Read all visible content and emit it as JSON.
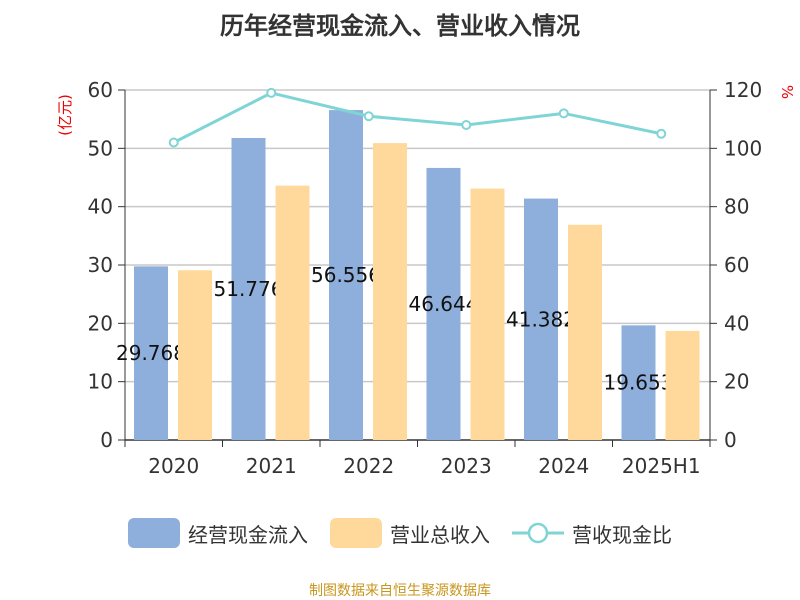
{
  "chart_data": {
    "type": "bar",
    "title": "历年经营现金流入、营业收入情况",
    "categories": [
      "2020",
      "2021",
      "2022",
      "2023",
      "2024",
      "2025H1"
    ],
    "y_left": {
      "label": "(亿元)",
      "range": [
        0,
        60
      ],
      "ticks": [
        0,
        10,
        20,
        30,
        40,
        50,
        60
      ]
    },
    "y_right": {
      "label": "%",
      "range": [
        0,
        120
      ],
      "ticks": [
        0,
        20,
        40,
        60,
        80,
        100,
        120
      ]
    },
    "grid": true,
    "legend_position": "bottom",
    "series": [
      {
        "name": "经营现金流入",
        "type": "bar",
        "axis": "left",
        "color": "#8eaedb",
        "values": [
          29.768,
          51.776,
          56.556,
          46.644,
          41.382,
          19.653
        ],
        "labels": [
          "29.768",
          "51.776",
          "56.556",
          "46.644",
          "41.382",
          "19.653"
        ]
      },
      {
        "name": "营业总收入",
        "type": "bar",
        "axis": "left",
        "color": "#fed99b",
        "values": [
          29.1,
          43.6,
          50.9,
          43.1,
          36.9,
          18.7
        ]
      },
      {
        "name": "营收现金比",
        "type": "line",
        "axis": "right",
        "color": "#7fd4d6",
        "values": [
          102,
          119,
          111,
          108,
          112,
          105
        ]
      }
    ]
  },
  "source": "制图数据来自恒生聚源数据库"
}
